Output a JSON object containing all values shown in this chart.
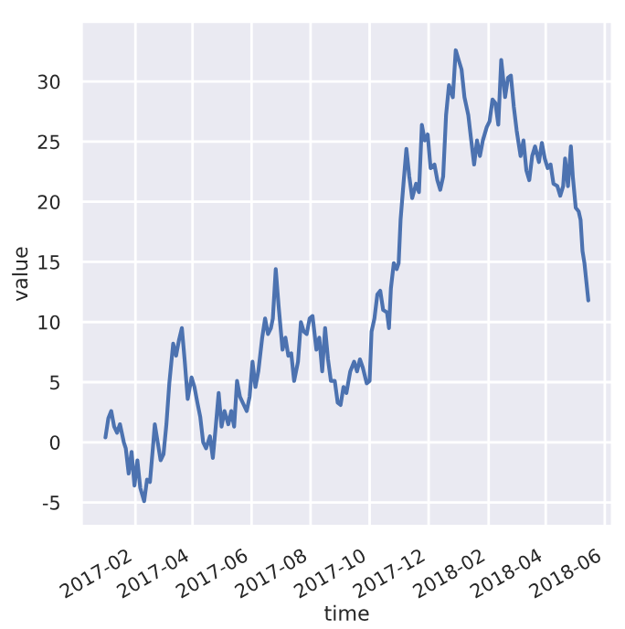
{
  "chart_data": {
    "type": "line",
    "xlabel": "time",
    "ylabel": "value",
    "grid": true,
    "xlim": [
      "2016-12-07",
      "2018-06-09"
    ],
    "ylim": [
      -7,
      35
    ],
    "xticks": [
      "2017-02",
      "2017-04",
      "2017-06",
      "2017-08",
      "2017-10",
      "2017-12",
      "2018-02",
      "2018-04",
      "2018-06"
    ],
    "yticks": [
      -5,
      0,
      5,
      10,
      15,
      20,
      25,
      30
    ],
    "x": [
      "2017-01-01",
      "2017-01-04",
      "2017-01-07",
      "2017-01-10",
      "2017-01-13",
      "2017-01-16",
      "2017-01-20",
      "2017-01-22",
      "2017-01-25",
      "2017-01-28",
      "2017-01-31",
      "2017-02-03",
      "2017-02-06",
      "2017-02-10",
      "2017-02-13",
      "2017-02-16",
      "2017-02-19",
      "2017-02-21",
      "2017-02-24",
      "2017-02-27",
      "2017-03-02",
      "2017-03-05",
      "2017-03-08",
      "2017-03-12",
      "2017-03-15",
      "2017-03-18",
      "2017-03-21",
      "2017-03-24",
      "2017-03-27",
      "2017-03-31",
      "2017-04-03",
      "2017-04-06",
      "2017-04-09",
      "2017-04-12",
      "2017-04-15",
      "2017-04-19",
      "2017-04-22",
      "2017-04-25",
      "2017-04-28",
      "2017-05-01",
      "2017-05-04",
      "2017-05-08",
      "2017-05-11",
      "2017-05-14",
      "2017-05-17",
      "2017-05-20",
      "2017-05-24",
      "2017-05-27",
      "2017-05-30",
      "2017-06-02",
      "2017-06-05",
      "2017-06-08",
      "2017-06-12",
      "2017-06-15",
      "2017-06-18",
      "2017-06-21",
      "2017-06-23",
      "2017-06-26",
      "2017-06-29",
      "2017-07-03",
      "2017-07-06",
      "2017-07-09",
      "2017-07-12",
      "2017-07-15",
      "2017-07-19",
      "2017-07-22",
      "2017-07-25",
      "2017-07-28",
      "2017-07-31",
      "2017-08-03",
      "2017-08-07",
      "2017-08-10",
      "2017-08-13",
      "2017-08-16",
      "2017-08-19",
      "2017-08-22",
      "2017-08-26",
      "2017-08-29",
      "2017-09-01",
      "2017-09-04",
      "2017-09-07",
      "2017-09-11",
      "2017-09-15",
      "2017-09-18",
      "2017-09-21",
      "2017-09-24",
      "2017-09-28",
      "2017-10-01",
      "2017-10-03",
      "2017-10-06",
      "2017-10-09",
      "2017-10-12",
      "2017-10-15",
      "2017-10-19",
      "2017-10-21",
      "2017-10-23",
      "2017-10-26",
      "2017-10-29",
      "2017-10-31",
      "2017-11-02",
      "2017-11-05",
      "2017-11-08",
      "2017-11-11",
      "2017-11-14",
      "2017-11-18",
      "2017-11-21",
      "2017-11-24",
      "2017-11-27",
      "2017-11-30",
      "2017-12-03",
      "2017-12-07",
      "2017-12-10",
      "2017-12-13",
      "2017-12-16",
      "2017-12-19",
      "2017-12-22",
      "2017-12-26",
      "2017-12-29",
      "2018-01-01",
      "2018-01-04",
      "2018-01-07",
      "2018-01-11",
      "2018-01-14",
      "2018-01-17",
      "2018-01-20",
      "2018-01-23",
      "2018-01-26",
      "2018-01-30",
      "2018-02-02",
      "2018-02-05",
      "2018-02-08",
      "2018-02-11",
      "2018-02-14",
      "2018-02-18",
      "2018-02-21",
      "2018-02-24",
      "2018-02-27",
      "2018-03-02",
      "2018-03-06",
      "2018-03-09",
      "2018-03-12",
      "2018-03-15",
      "2018-03-18",
      "2018-03-21",
      "2018-03-25",
      "2018-03-28",
      "2018-03-31",
      "2018-04-03",
      "2018-04-06",
      "2018-04-09",
      "2018-04-13",
      "2018-04-16",
      "2018-04-19",
      "2018-04-21",
      "2018-04-24",
      "2018-04-27",
      "2018-04-29",
      "2018-05-02",
      "2018-05-05",
      "2018-05-07",
      "2018-05-09",
      "2018-05-11",
      "2018-05-15"
    ],
    "series": [
      {
        "color": "#4c72b0",
        "values": [
          0.4,
          2.0,
          2.6,
          1.3,
          0.8,
          1.5,
          0,
          -0.5,
          -2.6,
          -0.8,
          -3.6,
          -1.5,
          -3.8,
          -4.9,
          -3.1,
          -3.3,
          -0.5,
          1.5,
          0,
          -1.5,
          -1.0,
          1.5,
          4.9,
          8.2,
          7.2,
          8.5,
          9.5,
          6.7,
          3.6,
          5.4,
          4.6,
          3.3,
          2.1,
          0,
          -0.5,
          0.5,
          -1.3,
          1.3,
          4.1,
          1.3,
          2.6,
          1.5,
          2.6,
          1.3,
          5.1,
          3.8,
          3.1,
          2.6,
          3.8,
          6.7,
          4.6,
          5.9,
          8.7,
          10.3,
          9.0,
          9.5,
          10.3,
          14.4,
          11.3,
          7.7,
          8.7,
          7.2,
          7.4,
          5.1,
          6.7,
          10.0,
          9.2,
          9.0,
          10.3,
          10.5,
          7.7,
          8.7,
          5.9,
          9.5,
          6.9,
          5.1,
          5.1,
          3.3,
          3.1,
          4.6,
          4.1,
          5.9,
          6.7,
          5.9,
          6.9,
          6.2,
          4.9,
          5.1,
          9.2,
          10.3,
          12.3,
          12.6,
          11.0,
          10.8,
          9.5,
          12.8,
          14.9,
          14.4,
          14.9,
          18.5,
          21.5,
          24.4,
          22.1,
          20.3,
          21.5,
          20.8,
          26.4,
          25.1,
          25.6,
          22.8,
          23.1,
          21.8,
          21.0,
          22.1,
          27.2,
          29.7,
          28.7,
          32.6,
          31.8,
          31.0,
          28.7,
          27.2,
          25.1,
          23.1,
          25.1,
          23.8,
          25.1,
          26.2,
          26.7,
          28.5,
          28.2,
          26.4,
          31.8,
          28.7,
          30.3,
          30.5,
          27.9,
          25.9,
          23.8,
          25.1,
          22.6,
          21.8,
          23.8,
          24.6,
          23.3,
          24.9,
          23.6,
          22.8,
          23.1,
          21.5,
          21.3,
          20.5,
          21.3,
          23.6,
          21.3,
          24.6,
          22.1,
          19.5,
          19.2,
          18.5,
          15.9,
          14.9,
          11.8
        ]
      }
    ]
  }
}
